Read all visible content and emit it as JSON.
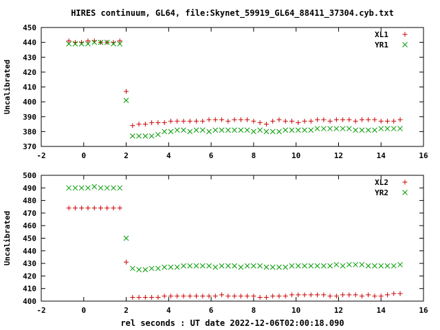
{
  "title": "HIRES continuum, GL64, file:Skynet_59919_GL64_88411_37304.cyb.txt",
  "xlabel": "rel seconds : UT date 2022-12-06T02:00:18.090",
  "chart_data": [
    {
      "type": "scatter",
      "ylabel": "Uncalibrated",
      "xlim": [
        -2,
        16
      ],
      "ylim": [
        370,
        450
      ],
      "xticks": [
        -2,
        0,
        2,
        4,
        6,
        8,
        10,
        12,
        14,
        16
      ],
      "yticks": [
        370,
        380,
        390,
        400,
        410,
        420,
        430,
        440,
        450
      ],
      "legend_position": "top-right",
      "grid": false,
      "series": [
        {
          "name": "XL1",
          "marker": "plus",
          "color": "#cc0000",
          "x": [
            -0.7,
            -0.4,
            -0.1,
            0.2,
            0.5,
            0.8,
            1.1,
            1.4,
            1.7,
            2.0,
            2.3,
            2.6,
            2.9,
            3.2,
            3.5,
            3.8,
            4.1,
            4.4,
            4.7,
            5.0,
            5.3,
            5.6,
            5.9,
            6.2,
            6.5,
            6.8,
            7.1,
            7.4,
            7.7,
            8.0,
            8.3,
            8.6,
            8.9,
            9.2,
            9.5,
            9.8,
            10.1,
            10.4,
            10.7,
            11.0,
            11.3,
            11.6,
            11.9,
            12.2,
            12.5,
            12.8,
            13.1,
            13.4,
            13.7,
            14.0,
            14.3,
            14.6,
            14.9
          ],
          "y": [
            441,
            440,
            440,
            441,
            441,
            440,
            440,
            440,
            441,
            407,
            384,
            385,
            385,
            386,
            386,
            386,
            387,
            387,
            387,
            387,
            387,
            387,
            388,
            388,
            388,
            387,
            388,
            388,
            388,
            387,
            386,
            385,
            387,
            388,
            387,
            387,
            386,
            387,
            387,
            388,
            388,
            387,
            388,
            388,
            388,
            387,
            388,
            388,
            388,
            387,
            387,
            387,
            388
          ]
        },
        {
          "name": "YR1",
          "marker": "cross",
          "color": "#009900",
          "x": [
            -0.7,
            -0.4,
            -0.1,
            0.2,
            0.5,
            0.8,
            1.1,
            1.4,
            1.7,
            2.0,
            2.3,
            2.6,
            2.9,
            3.2,
            3.5,
            3.8,
            4.1,
            4.4,
            4.7,
            5.0,
            5.3,
            5.6,
            5.9,
            6.2,
            6.5,
            6.8,
            7.1,
            7.4,
            7.7,
            8.0,
            8.3,
            8.6,
            8.9,
            9.2,
            9.5,
            9.8,
            10.1,
            10.4,
            10.7,
            11.0,
            11.3,
            11.6,
            11.9,
            12.2,
            12.5,
            12.8,
            13.1,
            13.4,
            13.7,
            14.0,
            14.3,
            14.6,
            14.9
          ],
          "y": [
            439,
            439,
            439,
            439,
            440,
            440,
            440,
            439,
            439,
            401,
            377,
            377,
            377,
            377,
            378,
            380,
            380,
            381,
            381,
            380,
            381,
            381,
            380,
            381,
            381,
            381,
            381,
            381,
            381,
            380,
            381,
            380,
            380,
            380,
            381,
            381,
            381,
            381,
            381,
            382,
            382,
            382,
            382,
            382,
            382,
            381,
            381,
            381,
            381,
            382,
            382,
            382,
            382
          ]
        }
      ]
    },
    {
      "type": "scatter",
      "ylabel": "Uncalibrated",
      "xlim": [
        -2,
        16
      ],
      "ylim": [
        400,
        500
      ],
      "xticks": [
        -2,
        0,
        2,
        4,
        6,
        8,
        10,
        12,
        14,
        16
      ],
      "yticks": [
        400,
        410,
        420,
        430,
        440,
        450,
        460,
        470,
        480,
        490,
        500
      ],
      "legend_position": "top-right",
      "grid": false,
      "series": [
        {
          "name": "XL2",
          "marker": "plus",
          "color": "#cc0000",
          "x": [
            -0.7,
            -0.4,
            -0.1,
            0.2,
            0.5,
            0.8,
            1.1,
            1.4,
            1.7,
            2.0,
            2.3,
            2.6,
            2.9,
            3.2,
            3.5,
            3.8,
            4.1,
            4.4,
            4.7,
            5.0,
            5.3,
            5.6,
            5.9,
            6.2,
            6.5,
            6.8,
            7.1,
            7.4,
            7.7,
            8.0,
            8.3,
            8.6,
            8.9,
            9.2,
            9.5,
            9.8,
            10.1,
            10.4,
            10.7,
            11.0,
            11.3,
            11.6,
            11.9,
            12.2,
            12.5,
            12.8,
            13.1,
            13.4,
            13.7,
            14.0,
            14.3,
            14.6,
            14.9
          ],
          "y": [
            474,
            474,
            474,
            474,
            474,
            474,
            474,
            474,
            474,
            431,
            403,
            403,
            403,
            403,
            403,
            404,
            404,
            404,
            404,
            404,
            404,
            404,
            404,
            404,
            405,
            404,
            404,
            404,
            404,
            404,
            403,
            403,
            404,
            404,
            404,
            405,
            405,
            405,
            405,
            405,
            405,
            404,
            404,
            405,
            405,
            405,
            404,
            405,
            404,
            404,
            405,
            406,
            406
          ]
        },
        {
          "name": "YR2",
          "marker": "cross",
          "color": "#009900",
          "x": [
            -0.7,
            -0.4,
            -0.1,
            0.2,
            0.5,
            0.8,
            1.1,
            1.4,
            1.7,
            2.0,
            2.3,
            2.6,
            2.9,
            3.2,
            3.5,
            3.8,
            4.1,
            4.4,
            4.7,
            5.0,
            5.3,
            5.6,
            5.9,
            6.2,
            6.5,
            6.8,
            7.1,
            7.4,
            7.7,
            8.0,
            8.3,
            8.6,
            8.9,
            9.2,
            9.5,
            9.8,
            10.1,
            10.4,
            10.7,
            11.0,
            11.3,
            11.6,
            11.9,
            12.2,
            12.5,
            12.8,
            13.1,
            13.4,
            13.7,
            14.0,
            14.3,
            14.6,
            14.9
          ],
          "y": [
            490,
            490,
            490,
            490,
            491,
            490,
            490,
            490,
            490,
            450,
            426,
            425,
            425,
            426,
            426,
            427,
            427,
            427,
            428,
            428,
            428,
            428,
            428,
            427,
            428,
            428,
            428,
            427,
            428,
            428,
            428,
            427,
            427,
            427,
            427,
            428,
            428,
            428,
            428,
            428,
            428,
            428,
            429,
            428,
            429,
            429,
            429,
            428,
            428,
            428,
            428,
            428,
            429
          ]
        }
      ]
    }
  ]
}
